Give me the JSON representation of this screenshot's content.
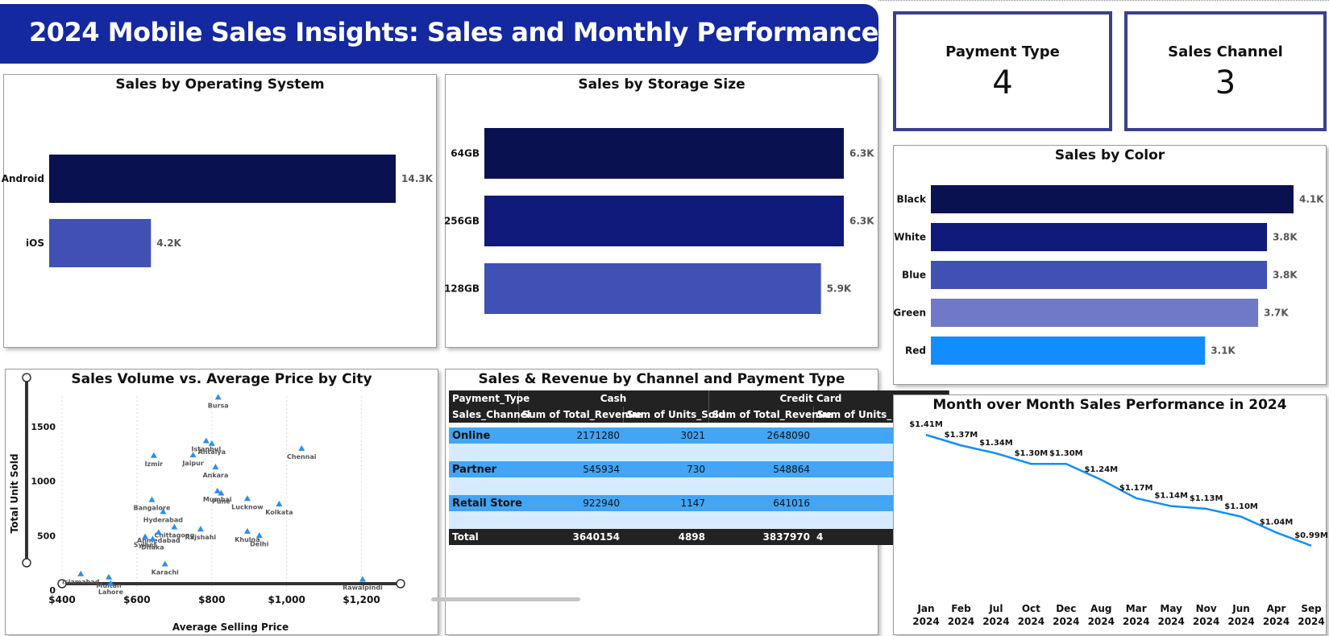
{
  "header": {
    "title": "2024 Mobile Sales Insights: Sales and Monthly Performance"
  },
  "kpis": [
    {
      "label": "Payment Type",
      "value": "4"
    },
    {
      "label": "Sales Channel",
      "value": "3"
    }
  ],
  "chart_data": [
    {
      "id": "os",
      "type": "bar",
      "orientation": "horizontal",
      "title": "Sales by Operating System",
      "categories": [
        "Android",
        "iOS"
      ],
      "values": [
        14.3,
        4.2
      ],
      "labels": [
        "14.3K",
        "4.2K"
      ],
      "colors": [
        "#0a1150",
        "#4050b5"
      ]
    },
    {
      "id": "storage",
      "type": "bar",
      "orientation": "horizontal",
      "title": "Sales by Storage Size",
      "categories": [
        "64GB",
        "256GB",
        "128GB"
      ],
      "values": [
        6.3,
        6.3,
        5.9
      ],
      "labels": [
        "6.3K",
        "6.3K",
        "5.9K"
      ],
      "colors": [
        "#0a1150",
        "#0f1a7a",
        "#4050b5"
      ]
    },
    {
      "id": "color",
      "type": "bar",
      "orientation": "horizontal",
      "title": "Sales by Color",
      "categories": [
        "Black",
        "White",
        "Blue",
        "Green",
        "Red"
      ],
      "values": [
        4.1,
        3.8,
        3.8,
        3.7,
        3.1
      ],
      "labels": [
        "4.1K",
        "3.8K",
        "3.8K",
        "3.7K",
        "3.1K"
      ],
      "colors": [
        "#0a1150",
        "#0f1a7a",
        "#4050b5",
        "#7079c7",
        "#118dff"
      ]
    },
    {
      "id": "scatter",
      "type": "scatter",
      "title": "Sales Volume vs. Average Price by City",
      "xlabel": "Average Selling Price",
      "ylabel": "Total Unit Sold",
      "xlim": [
        400,
        1300
      ],
      "ylim": [
        0,
        1780
      ],
      "xticks": [
        "$400",
        "$600",
        "$800",
        "$1,000",
        "$1,200"
      ],
      "xtick_values": [
        400,
        600,
        800,
        1000,
        1200
      ],
      "yticks": [
        "0",
        "500",
        "1000",
        "1500"
      ],
      "ytick_values": [
        0,
        500,
        1000,
        1500
      ],
      "points": [
        {
          "city": "Bursa",
          "x": 817,
          "y": 1770
        },
        {
          "city": "Istanbul",
          "x": 785,
          "y": 1370
        },
        {
          "city": "Antalya",
          "x": 800,
          "y": 1345
        },
        {
          "city": "Chennai",
          "x": 1040,
          "y": 1300
        },
        {
          "city": "Izmir",
          "x": 645,
          "y": 1235
        },
        {
          "city": "Jaipur",
          "x": 750,
          "y": 1240
        },
        {
          "city": "Ankara",
          "x": 810,
          "y": 1130
        },
        {
          "city": "Mumbai",
          "x": 815,
          "y": 910
        },
        {
          "city": "Pune",
          "x": 825,
          "y": 890
        },
        {
          "city": "Lucknow",
          "x": 895,
          "y": 840
        },
        {
          "city": "Bangalore",
          "x": 640,
          "y": 830
        },
        {
          "city": "Kolkata",
          "x": 980,
          "y": 790
        },
        {
          "city": "Hyderabad",
          "x": 670,
          "y": 720
        },
        {
          "city": "Rajshahi",
          "x": 770,
          "y": 560
        },
        {
          "city": "Chittagong",
          "x": 700,
          "y": 580
        },
        {
          "city": "Khulna",
          "x": 895,
          "y": 540
        },
        {
          "city": "Ahmedabad",
          "x": 658,
          "y": 530
        },
        {
          "city": "Delhi",
          "x": 927,
          "y": 500
        },
        {
          "city": "Sylhet",
          "x": 622,
          "y": 490
        },
        {
          "city": "Dhaka",
          "x": 642,
          "y": 470
        },
        {
          "city": "Karachi",
          "x": 675,
          "y": 240
        },
        {
          "city": "Islamabad",
          "x": 450,
          "y": 150
        },
        {
          "city": "Multan",
          "x": 525,
          "y": 120
        },
        {
          "city": "Lahore",
          "x": 530,
          "y": 60
        },
        {
          "city": "Rawalpindi",
          "x": 1203,
          "y": 100
        }
      ]
    },
    {
      "id": "mom",
      "type": "line",
      "title": "Month over Month Sales Performance in 2024",
      "categories": [
        "Jan\n2024",
        "Feb\n2024",
        "Jul\n2024",
        "Oct\n2024",
        "Dec\n2024",
        "Aug\n2024",
        "Mar\n2024",
        "May\n2024",
        "Nov\n2024",
        "Jun\n2024",
        "Apr\n2024",
        "Sep\n2024"
      ],
      "values": [
        1.41,
        1.37,
        1.34,
        1.3,
        1.3,
        1.24,
        1.17,
        1.14,
        1.13,
        1.1,
        1.04,
        0.99
      ],
      "labels": [
        "$1.41M",
        "$1.37M",
        "$1.34M",
        "$1.30M",
        "$1.30M",
        "$1.24M",
        "$1.17M",
        "$1.14M",
        "$1.13M",
        "$1.10M",
        "$1.04M",
        "$0.99M"
      ],
      "ylim": [
        0.95,
        1.45
      ],
      "color": "#118dff"
    }
  ],
  "matrix": {
    "title": "Sales & Revenue by Channel and Payment Type",
    "header_row1": [
      "Payment_Type",
      "Cash",
      "Credit Card"
    ],
    "header_row2": [
      "Sales_Channel",
      "Sum of Total_Revenue",
      "Sum of Units_Sold",
      "Sum of Total_Revenue",
      "Sum of Units_"
    ],
    "rows": [
      {
        "channel": "Online",
        "cash_revenue": "2171280",
        "cash_units": "3021",
        "cc_revenue": "2648090"
      },
      {
        "channel": "Partner",
        "cash_revenue": "545934",
        "cash_units": "730",
        "cc_revenue": "548864"
      },
      {
        "channel": "Retail Store",
        "cash_revenue": "922940",
        "cash_units": "1147",
        "cc_revenue": "641016"
      }
    ],
    "total": {
      "label": "Total",
      "cash_revenue": "3640154",
      "cash_units": "4898",
      "cc_revenue": "3837970",
      "cc_units": "4"
    }
  }
}
